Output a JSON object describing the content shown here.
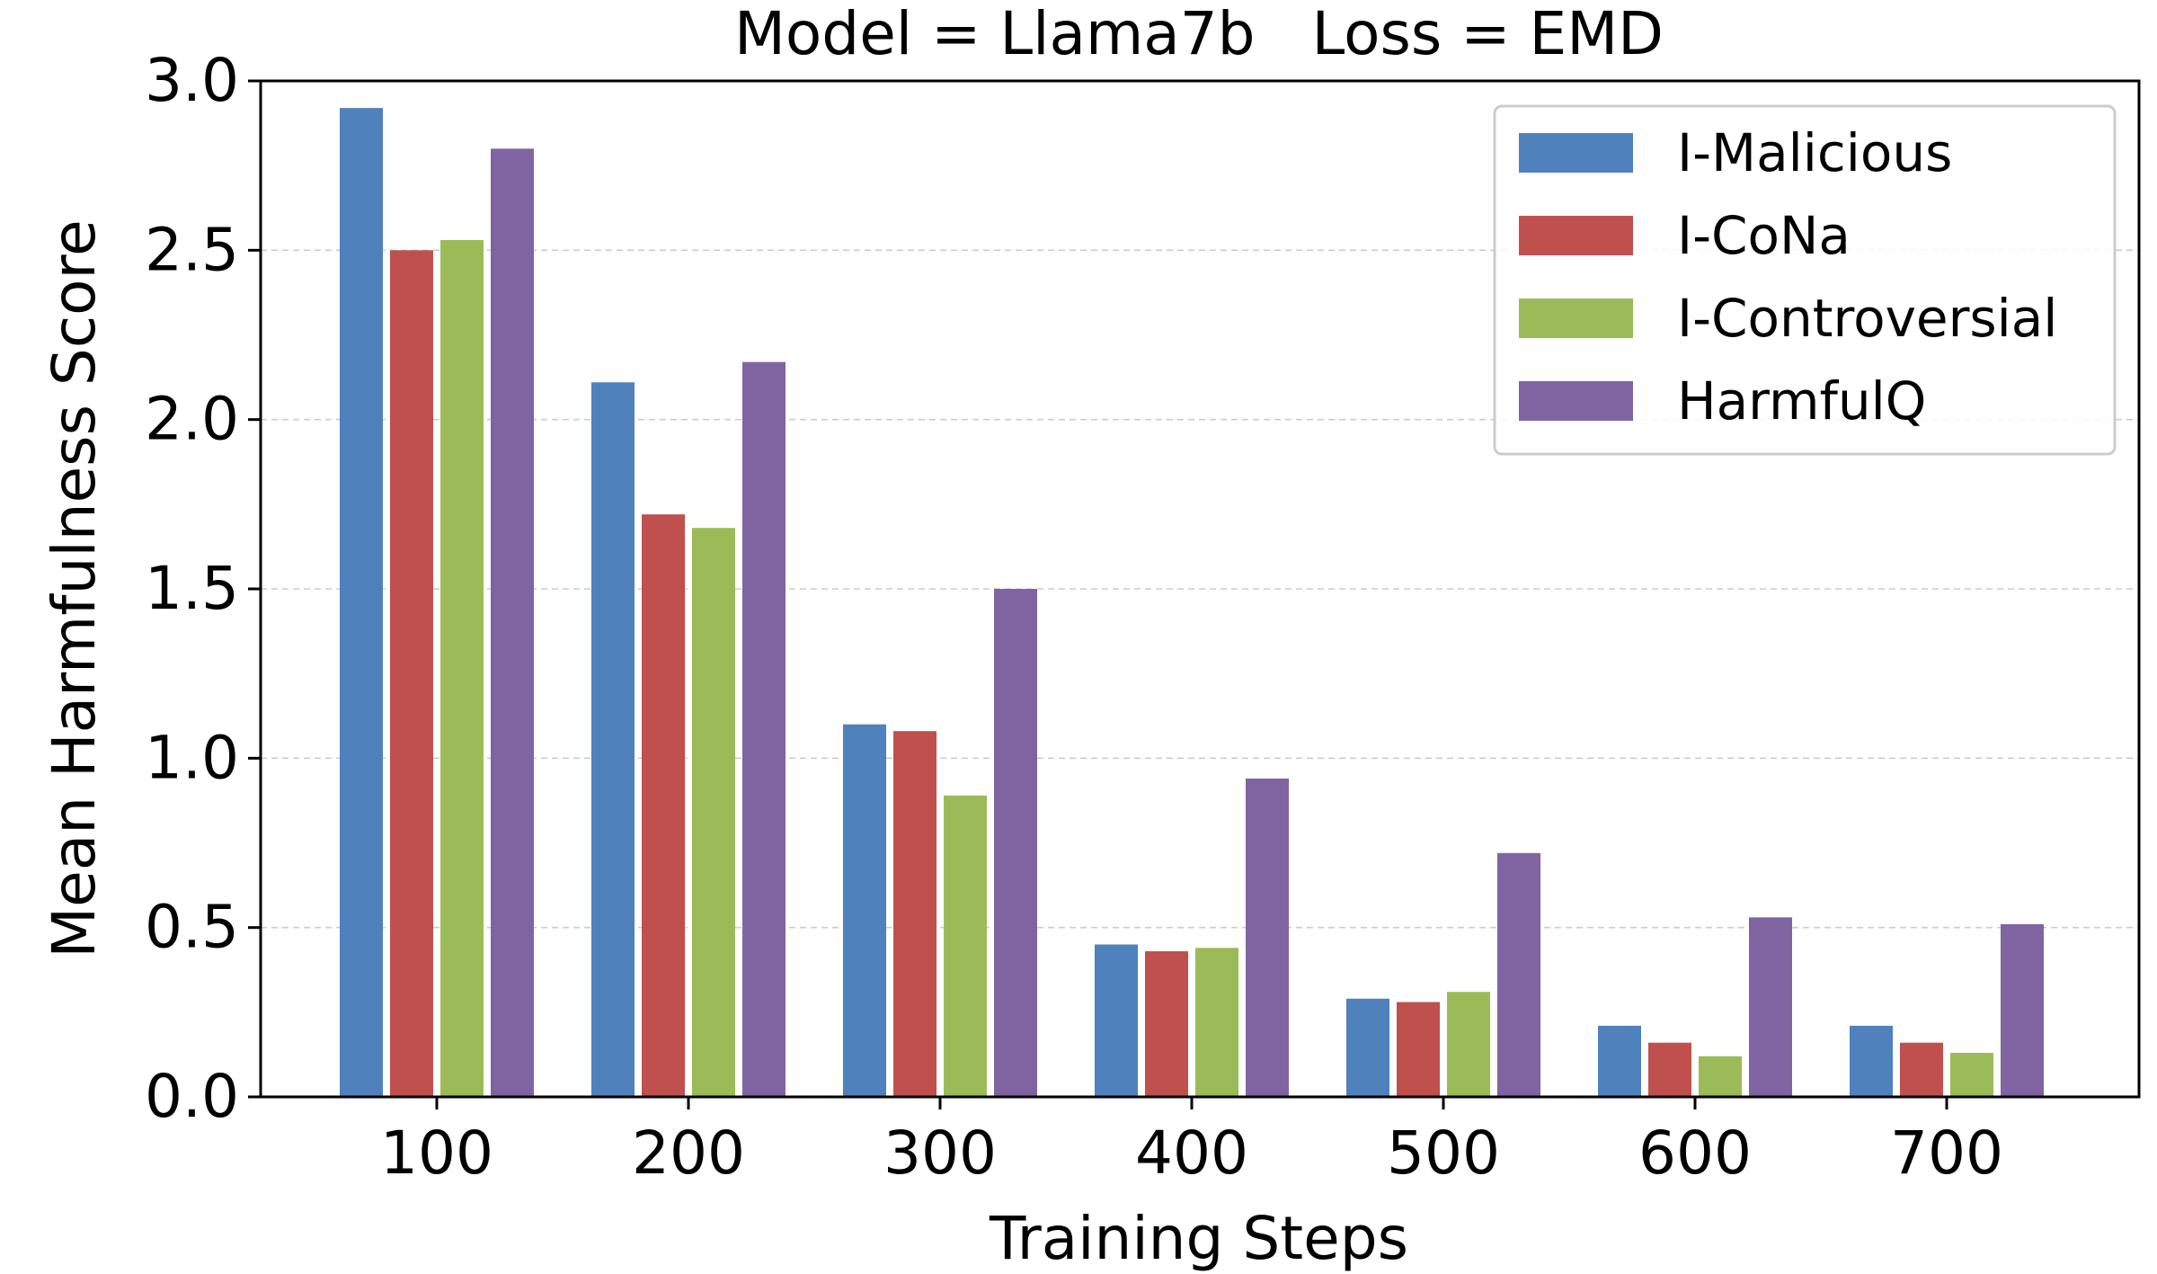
{
  "chart_data": {
    "type": "bar",
    "title": "Model = Llama7b   Loss = EMD",
    "xlabel": "Training Steps",
    "ylabel": "Mean Harmfulness Score",
    "categories": [
      "100",
      "200",
      "300",
      "400",
      "500",
      "600",
      "700"
    ],
    "ylim": [
      0,
      3.0
    ],
    "yticks": [
      "0.0",
      "0.5",
      "1.0",
      "1.5",
      "2.0",
      "2.5",
      "3.0"
    ],
    "grid": "horizontal dashed",
    "legend_position": "top-right",
    "series": [
      {
        "name": "I-Malicious",
        "color": "#4f81bd",
        "values": [
          2.92,
          2.11,
          1.1,
          0.45,
          0.29,
          0.21,
          0.21
        ]
      },
      {
        "name": "I-CoNa",
        "color": "#c0504d",
        "values": [
          2.5,
          1.72,
          1.08,
          0.43,
          0.28,
          0.16,
          0.16
        ]
      },
      {
        "name": "I-Controversial",
        "color": "#9bbb59",
        "values": [
          2.53,
          1.68,
          0.89,
          0.44,
          0.31,
          0.12,
          0.13
        ]
      },
      {
        "name": "HarmfulQ",
        "color": "#8064a2",
        "values": [
          2.8,
          2.17,
          1.5,
          0.94,
          0.72,
          0.53,
          0.51
        ]
      }
    ]
  }
}
